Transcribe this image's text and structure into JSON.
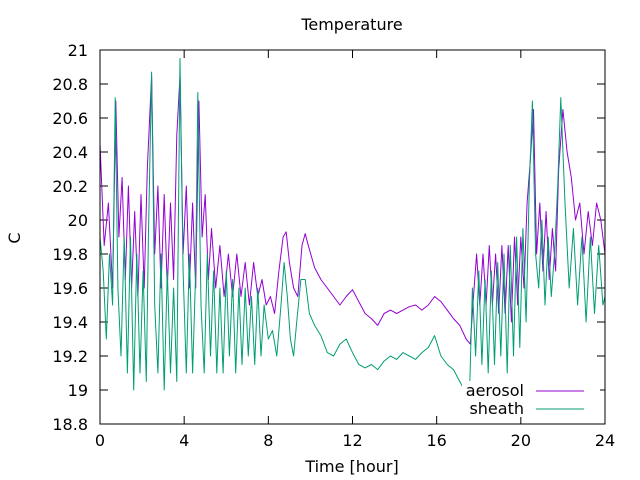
{
  "chart_data": {
    "type": "line",
    "title": "Temperature",
    "xlabel": "Time [hour]",
    "ylabel": "C",
    "xlim": [
      0,
      24
    ],
    "ylim": [
      18.8,
      21
    ],
    "xticks": [
      0,
      4,
      8,
      12,
      16,
      20,
      24
    ],
    "yticks": [
      18.8,
      19,
      19.2,
      19.4,
      19.6,
      19.8,
      20,
      20.2,
      20.4,
      20.6,
      20.8,
      21
    ],
    "grid": false,
    "legend_position": "bottom-right",
    "series": [
      {
        "name": "aerosol",
        "color": "#9400d3",
        "points": [
          [
            0.0,
            20.45
          ],
          [
            0.2,
            19.85
          ],
          [
            0.4,
            20.1
          ],
          [
            0.6,
            19.6
          ],
          [
            0.75,
            20.7
          ],
          [
            0.9,
            19.9
          ],
          [
            1.05,
            20.25
          ],
          [
            1.2,
            19.65
          ],
          [
            1.35,
            20.2
          ],
          [
            1.5,
            19.6
          ],
          [
            1.65,
            20.05
          ],
          [
            1.8,
            19.55
          ],
          [
            1.95,
            20.15
          ],
          [
            2.1,
            19.6
          ],
          [
            2.25,
            20.3
          ],
          [
            2.45,
            20.85
          ],
          [
            2.6,
            19.8
          ],
          [
            2.75,
            20.2
          ],
          [
            2.9,
            19.6
          ],
          [
            3.05,
            20.15
          ],
          [
            3.2,
            19.6
          ],
          [
            3.35,
            20.1
          ],
          [
            3.5,
            19.65
          ],
          [
            3.65,
            20.5
          ],
          [
            3.8,
            20.85
          ],
          [
            3.95,
            19.8
          ],
          [
            4.1,
            20.2
          ],
          [
            4.25,
            19.6
          ],
          [
            4.4,
            20.1
          ],
          [
            4.55,
            19.6
          ],
          [
            4.7,
            20.7
          ],
          [
            4.85,
            19.9
          ],
          [
            5.0,
            20.15
          ],
          [
            5.15,
            19.65
          ],
          [
            5.3,
            19.95
          ],
          [
            5.5,
            19.6
          ],
          [
            5.7,
            19.85
          ],
          [
            5.9,
            19.55
          ],
          [
            6.1,
            19.8
          ],
          [
            6.3,
            19.55
          ],
          [
            6.5,
            19.8
          ],
          [
            6.7,
            19.55
          ],
          [
            6.9,
            19.75
          ],
          [
            7.1,
            19.5
          ],
          [
            7.3,
            19.75
          ],
          [
            7.5,
            19.55
          ],
          [
            7.7,
            19.65
          ],
          [
            7.9,
            19.5
          ],
          [
            8.1,
            19.55
          ],
          [
            8.3,
            19.45
          ],
          [
            8.5,
            19.7
          ],
          [
            8.7,
            19.9
          ],
          [
            8.85,
            19.93
          ],
          [
            9.0,
            19.75
          ],
          [
            9.2,
            19.6
          ],
          [
            9.4,
            19.55
          ],
          [
            9.6,
            19.85
          ],
          [
            9.75,
            19.92
          ],
          [
            9.9,
            19.85
          ],
          [
            10.2,
            19.72
          ],
          [
            10.5,
            19.65
          ],
          [
            10.8,
            19.6
          ],
          [
            11.1,
            19.55
          ],
          [
            11.4,
            19.5
          ],
          [
            11.7,
            19.55
          ],
          [
            12.0,
            19.59
          ],
          [
            12.3,
            19.52
          ],
          [
            12.6,
            19.45
          ],
          [
            12.9,
            19.42
          ],
          [
            13.2,
            19.38
          ],
          [
            13.5,
            19.45
          ],
          [
            13.8,
            19.47
          ],
          [
            14.1,
            19.45
          ],
          [
            14.4,
            19.47
          ],
          [
            14.7,
            19.49
          ],
          [
            15.0,
            19.5
          ],
          [
            15.3,
            19.47
          ],
          [
            15.6,
            19.5
          ],
          [
            15.9,
            19.55
          ],
          [
            16.2,
            19.52
          ],
          [
            16.5,
            19.47
          ],
          [
            16.8,
            19.42
          ],
          [
            17.1,
            19.38
          ],
          [
            17.4,
            19.3
          ],
          [
            17.6,
            19.27
          ],
          [
            17.75,
            19.55
          ],
          [
            17.9,
            19.8
          ],
          [
            18.05,
            19.5
          ],
          [
            18.2,
            19.8
          ],
          [
            18.35,
            19.5
          ],
          [
            18.5,
            19.85
          ],
          [
            18.65,
            19.5
          ],
          [
            18.8,
            19.8
          ],
          [
            18.95,
            19.45
          ],
          [
            19.1,
            19.85
          ],
          [
            19.25,
            19.45
          ],
          [
            19.4,
            19.85
          ],
          [
            19.55,
            19.4
          ],
          [
            19.7,
            19.9
          ],
          [
            19.85,
            19.5
          ],
          [
            20.0,
            19.9
          ],
          [
            20.15,
            19.6
          ],
          [
            20.3,
            20.1
          ],
          [
            20.45,
            20.35
          ],
          [
            20.6,
            20.65
          ],
          [
            20.75,
            19.8
          ],
          [
            20.9,
            20.1
          ],
          [
            21.05,
            19.7
          ],
          [
            21.2,
            20.05
          ],
          [
            21.35,
            19.65
          ],
          [
            21.5,
            19.95
          ],
          [
            21.65,
            19.7
          ],
          [
            21.8,
            20.3
          ],
          [
            22.0,
            20.65
          ],
          [
            22.2,
            20.4
          ],
          [
            22.4,
            20.25
          ],
          [
            22.6,
            20.0
          ],
          [
            22.8,
            20.1
          ],
          [
            23.0,
            19.8
          ],
          [
            23.2,
            20.05
          ],
          [
            23.4,
            19.85
          ],
          [
            23.6,
            20.1
          ],
          [
            23.8,
            20.0
          ],
          [
            24.0,
            19.8
          ]
        ]
      },
      {
        "name": "sheath",
        "color": "#009e73",
        "points": [
          [
            0.0,
            19.9
          ],
          [
            0.15,
            19.7
          ],
          [
            0.3,
            19.3
          ],
          [
            0.45,
            19.8
          ],
          [
            0.6,
            19.5
          ],
          [
            0.72,
            20.72
          ],
          [
            0.85,
            19.6
          ],
          [
            1.0,
            19.2
          ],
          [
            1.15,
            19.9
          ],
          [
            1.3,
            19.1
          ],
          [
            1.45,
            19.9
          ],
          [
            1.6,
            19.0
          ],
          [
            1.75,
            19.8
          ],
          [
            1.9,
            19.1
          ],
          [
            2.05,
            19.7
          ],
          [
            2.2,
            19.05
          ],
          [
            2.3,
            19.9
          ],
          [
            2.45,
            20.87
          ],
          [
            2.6,
            19.5
          ],
          [
            2.75,
            19.1
          ],
          [
            2.9,
            19.8
          ],
          [
            3.05,
            19.0
          ],
          [
            3.2,
            19.7
          ],
          [
            3.35,
            19.1
          ],
          [
            3.5,
            19.6
          ],
          [
            3.65,
            19.05
          ],
          [
            3.8,
            20.95
          ],
          [
            3.95,
            19.7
          ],
          [
            4.1,
            19.1
          ],
          [
            4.25,
            19.8
          ],
          [
            4.4,
            19.1
          ],
          [
            4.55,
            19.7
          ],
          [
            4.65,
            20.75
          ],
          [
            4.8,
            19.5
          ],
          [
            4.95,
            19.1
          ],
          [
            5.1,
            19.8
          ],
          [
            5.25,
            19.2
          ],
          [
            5.4,
            19.7
          ],
          [
            5.55,
            19.1
          ],
          [
            5.7,
            19.6
          ],
          [
            5.85,
            19.1
          ],
          [
            6.0,
            19.7
          ],
          [
            6.15,
            19.2
          ],
          [
            6.3,
            19.65
          ],
          [
            6.45,
            19.1
          ],
          [
            6.6,
            19.6
          ],
          [
            6.75,
            19.15
          ],
          [
            6.9,
            19.6
          ],
          [
            7.05,
            19.2
          ],
          [
            7.2,
            19.55
          ],
          [
            7.35,
            19.15
          ],
          [
            7.5,
            19.6
          ],
          [
            7.65,
            19.2
          ],
          [
            7.8,
            19.5
          ],
          [
            8.0,
            19.3
          ],
          [
            8.2,
            19.35
          ],
          [
            8.4,
            19.2
          ],
          [
            8.6,
            19.5
          ],
          [
            8.75,
            19.75
          ],
          [
            8.9,
            19.55
          ],
          [
            9.05,
            19.3
          ],
          [
            9.2,
            19.2
          ],
          [
            9.35,
            19.4
          ],
          [
            9.55,
            19.65
          ],
          [
            9.75,
            19.65
          ],
          [
            9.95,
            19.45
          ],
          [
            10.2,
            19.38
          ],
          [
            10.5,
            19.32
          ],
          [
            10.8,
            19.22
          ],
          [
            11.1,
            19.2
          ],
          [
            11.4,
            19.27
          ],
          [
            11.7,
            19.3
          ],
          [
            12.0,
            19.22
          ],
          [
            12.3,
            19.15
          ],
          [
            12.6,
            19.13
          ],
          [
            12.9,
            19.15
          ],
          [
            13.2,
            19.12
          ],
          [
            13.5,
            19.17
          ],
          [
            13.8,
            19.2
          ],
          [
            14.1,
            19.18
          ],
          [
            14.4,
            19.22
          ],
          [
            14.7,
            19.2
          ],
          [
            15.0,
            19.18
          ],
          [
            15.3,
            19.22
          ],
          [
            15.6,
            19.25
          ],
          [
            15.9,
            19.32
          ],
          [
            16.2,
            19.2
          ],
          [
            16.5,
            19.15
          ],
          [
            16.8,
            19.12
          ],
          [
            17.1,
            19.05
          ],
          [
            17.4,
            18.98
          ],
          [
            17.55,
            18.93
          ],
          [
            17.7,
            19.6
          ],
          [
            17.85,
            19.2
          ],
          [
            18.0,
            19.7
          ],
          [
            18.15,
            19.15
          ],
          [
            18.3,
            19.65
          ],
          [
            18.45,
            19.1
          ],
          [
            18.6,
            19.7
          ],
          [
            18.75,
            19.15
          ],
          [
            18.9,
            19.75
          ],
          [
            19.05,
            19.2
          ],
          [
            19.2,
            19.8
          ],
          [
            19.35,
            19.1
          ],
          [
            19.5,
            19.85
          ],
          [
            19.65,
            19.2
          ],
          [
            19.8,
            19.9
          ],
          [
            19.95,
            19.25
          ],
          [
            20.1,
            19.95
          ],
          [
            20.25,
            19.4
          ],
          [
            20.4,
            20.2
          ],
          [
            20.55,
            20.7
          ],
          [
            20.7,
            19.8
          ],
          [
            20.85,
            19.6
          ],
          [
            21.0,
            20.0
          ],
          [
            21.15,
            19.5
          ],
          [
            21.3,
            19.9
          ],
          [
            21.45,
            19.55
          ],
          [
            21.6,
            19.8
          ],
          [
            21.75,
            20.2
          ],
          [
            21.9,
            20.72
          ],
          [
            22.1,
            20.1
          ],
          [
            22.3,
            19.6
          ],
          [
            22.5,
            19.95
          ],
          [
            22.7,
            19.5
          ],
          [
            22.9,
            19.9
          ],
          [
            23.1,
            19.4
          ],
          [
            23.3,
            19.9
          ],
          [
            23.5,
            19.45
          ],
          [
            23.7,
            19.85
          ],
          [
            23.9,
            19.5
          ],
          [
            24.0,
            19.55
          ]
        ]
      }
    ]
  }
}
